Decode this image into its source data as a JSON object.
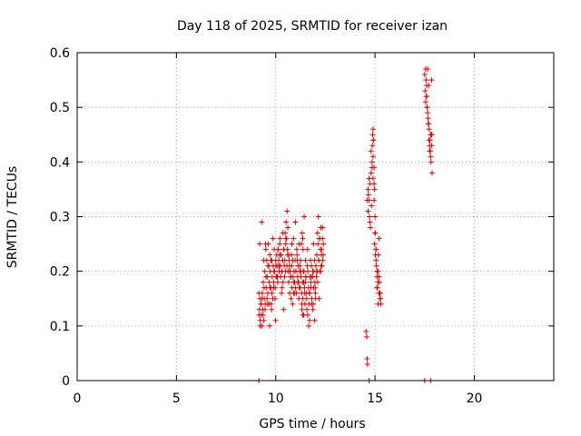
{
  "chart_data": {
    "type": "scatter",
    "title": "Day 118 of 2025, SRMTID for receiver izan",
    "xlabel": "GPS time / hours",
    "ylabel": "SRMTID / TECUs",
    "xlim": [
      0,
      24
    ],
    "ylim": [
      0,
      0.6
    ],
    "x_ticks": [
      0,
      5,
      10,
      15,
      20
    ],
    "y_ticks": [
      0,
      0.1,
      0.2,
      0.3,
      0.4,
      0.5,
      0.6
    ],
    "x_tick_labels": [
      "0",
      "5",
      "10",
      "15",
      "20"
    ],
    "y_tick_labels": [
      "0",
      "0.1",
      "0.2",
      "0.3",
      "0.4",
      "0.5",
      "0.6"
    ],
    "grid": true,
    "marker": "+",
    "color": "#e00000",
    "series": [
      {
        "x": [
          9.15,
          9.18,
          9.2,
          9.22,
          9.25,
          9.27,
          9.3,
          9.32,
          9.35,
          9.37,
          9.4,
          9.42,
          9.45,
          9.47,
          9.5,
          9.52,
          9.55,
          9.57,
          9.6,
          9.62,
          9.65,
          9.67,
          9.7,
          9.72,
          9.75,
          9.77,
          9.8,
          9.82,
          9.85,
          9.87,
          9.9,
          9.92,
          9.95,
          9.97,
          10.0,
          10.02,
          10.05,
          10.07,
          10.1,
          10.12,
          10.15,
          10.17,
          10.2,
          10.22,
          10.25,
          10.27,
          10.3,
          10.32,
          10.35,
          10.37,
          10.4,
          10.42,
          10.45,
          10.47,
          10.5,
          10.52,
          10.55,
          10.57,
          10.6,
          10.62,
          10.65,
          10.67,
          10.7,
          10.72,
          10.75,
          10.77,
          10.8,
          10.82,
          10.85,
          10.87,
          10.9,
          10.92,
          10.95,
          10.97,
          11.0,
          11.02,
          11.05,
          11.07,
          11.1,
          11.12,
          11.15,
          11.17,
          11.2,
          11.22,
          11.25,
          11.27,
          11.3,
          11.32,
          11.35,
          11.37,
          11.4,
          11.42,
          11.45,
          11.47,
          11.5,
          11.52,
          11.55,
          11.57,
          11.6,
          11.62,
          11.65,
          11.67,
          11.7,
          11.72,
          11.75,
          11.77,
          11.8,
          11.82,
          11.85,
          11.87,
          11.9,
          11.92,
          11.95,
          11.97,
          12.0,
          12.02,
          12.05,
          12.07,
          12.1,
          12.12,
          12.15,
          12.17,
          12.2,
          12.22,
          12.25,
          12.27,
          12.3,
          12.32,
          12.35,
          12.37,
          12.4,
          9.16,
          9.21,
          9.26,
          9.31,
          9.36,
          9.41,
          9.46,
          9.51,
          9.56,
          9.61,
          9.66,
          9.71,
          9.76,
          9.81,
          9.86,
          9.91,
          9.96,
          10.01,
          10.06,
          10.11,
          10.16,
          10.21,
          10.26,
          10.31,
          10.36,
          10.41,
          10.46,
          10.51,
          10.56,
          10.61,
          10.66,
          10.71,
          10.76,
          10.81,
          10.86,
          10.91,
          10.96,
          11.01,
          11.06,
          11.11,
          11.16,
          11.21,
          11.26,
          11.31,
          11.36,
          11.41,
          11.46,
          11.51,
          11.56,
          11.61,
          11.66,
          11.71,
          11.76,
          11.81,
          11.86,
          11.91,
          11.96,
          12.01,
          12.06,
          12.11,
          12.16,
          12.21,
          12.26,
          12.31,
          12.36,
          9.19,
          9.29,
          9.39,
          9.49,
          9.59,
          9.69,
          9.79,
          9.89,
          9.99,
          10.09,
          10.19,
          10.29,
          10.39,
          10.49,
          10.59,
          10.69,
          10.79,
          10.89,
          10.99,
          11.09,
          11.19,
          11.29,
          11.39,
          11.49,
          11.59,
          11.69,
          11.79,
          11.89,
          11.99,
          12.09,
          12.19,
          12.29,
          12.39,
          11.33,
          11.38,
          11.43,
          11.36,
          14.55,
          14.58,
          14.6,
          14.62,
          14.65,
          14.67,
          14.7,
          14.72,
          14.75,
          14.77,
          14.8,
          14.82,
          14.85,
          14.87,
          14.9,
          14.92,
          14.95,
          14.97,
          15.0,
          15.02,
          15.05,
          15.07,
          15.1,
          15.12,
          15.15,
          15.17,
          15.2,
          15.22,
          15.25,
          15.27,
          15.3,
          14.6,
          14.65,
          14.7,
          14.75,
          14.8,
          14.85,
          14.9,
          14.95,
          15.0,
          15.05,
          15.1,
          15.15,
          15.2,
          15.25,
          14.88,
          14.9,
          14.92,
          14.95,
          14.98,
          15.02,
          15.05,
          15.1,
          15.15,
          15.2,
          15.25,
          17.5,
          17.52,
          17.55,
          17.57,
          17.6,
          17.62,
          17.65,
          17.67,
          17.7,
          17.72,
          17.75,
          17.77,
          17.8,
          17.82,
          17.85,
          17.87,
          17.55,
          17.6,
          17.65,
          17.7,
          17.75,
          17.8,
          17.85,
          17.58,
          17.62,
          17.68,
          17.72,
          17.78,
          17.82,
          17.86
        ],
        "y": [
          0.16,
          0.13,
          0.15,
          0.11,
          0.14,
          0.12,
          0.1,
          0.16,
          0.13,
          0.18,
          0.11,
          0.15,
          0.2,
          0.14,
          0.24,
          0.17,
          0.22,
          0.19,
          0.16,
          0.25,
          0.21,
          0.18,
          0.23,
          0.2,
          0.17,
          0.14,
          0.22,
          0.19,
          0.15,
          0.21,
          0.18,
          0.24,
          0.2,
          0.17,
          0.22,
          0.19,
          0.23,
          0.21,
          0.18,
          0.24,
          0.22,
          0.2,
          0.25,
          0.21,
          0.19,
          0.23,
          0.2,
          0.17,
          0.22,
          0.18,
          0.24,
          0.21,
          0.19,
          0.27,
          0.25,
          0.29,
          0.26,
          0.31,
          0.23,
          0.2,
          0.18,
          0.22,
          0.16,
          0.2,
          0.19,
          0.15,
          0.21,
          0.17,
          0.14,
          0.19,
          0.16,
          0.2,
          0.18,
          0.22,
          0.17,
          0.2,
          0.16,
          0.23,
          0.19,
          0.21,
          0.18,
          0.25,
          0.2,
          0.17,
          0.22,
          0.19,
          0.16,
          0.13,
          0.18,
          0.15,
          0.12,
          0.2,
          0.17,
          0.14,
          0.22,
          0.19,
          0.16,
          0.13,
          0.24,
          0.2,
          0.17,
          0.14,
          0.11,
          0.19,
          0.22,
          0.17,
          0.21,
          0.15,
          0.19,
          0.13,
          0.25,
          0.2,
          0.22,
          0.18,
          0.16,
          0.21,
          0.19,
          0.23,
          0.27,
          0.25,
          0.3,
          0.22,
          0.26,
          0.2,
          0.24,
          0.28,
          0.23,
          0.21,
          0.26,
          0.22,
          0.25,
          0.12,
          0.1,
          0.14,
          0.15,
          0.12,
          0.17,
          0.13,
          0.19,
          0.15,
          0.21,
          0.14,
          0.17,
          0.22,
          0.16,
          0.26,
          0.2,
          0.15,
          0.21,
          0.19,
          0.24,
          0.21,
          0.26,
          0.23,
          0.2,
          0.27,
          0.24,
          0.22,
          0.26,
          0.21,
          0.28,
          0.23,
          0.2,
          0.19,
          0.25,
          0.22,
          0.18,
          0.16,
          0.2,
          0.24,
          0.18,
          0.15,
          0.21,
          0.2,
          0.14,
          0.12,
          0.18,
          0.16,
          0.19,
          0.15,
          0.12,
          0.1,
          0.16,
          0.18,
          0.14,
          0.2,
          0.17,
          0.11,
          0.15,
          0.2,
          0.18,
          0.22,
          0.26,
          0.2,
          0.24,
          0.28,
          0.25,
          0.29,
          0.22,
          0.25,
          0.14,
          0.1,
          0.13,
          0.17,
          0.11,
          0.19,
          0.23,
          0.16,
          0.13,
          0.2,
          0.24,
          0.21,
          0.23,
          0.26,
          0.29,
          0.22,
          0.17,
          0.25,
          0.2,
          0.18,
          0.21,
          0.16,
          0.19,
          0.14,
          0.17,
          0.2,
          0.15,
          0.21,
          0.23,
          0.27,
          0.24,
          0.3,
          0.26,
          0.09,
          0.08,
          0.04,
          0.03,
          0.31,
          0.34,
          0.33,
          0.3,
          0.36,
          0.28,
          0.38,
          0.32,
          0.4,
          0.43,
          0.46,
          0.44,
          0.39,
          0.35,
          0.3,
          0.27,
          0.24,
          0.21,
          0.19,
          0.17,
          0.2,
          0.23,
          0.26,
          0.18,
          0.16,
          0.15,
          0.14,
          0.33,
          0.35,
          0.37,
          0.29,
          0.42,
          0.39,
          0.37,
          0.33,
          0.27,
          0.24,
          0.2,
          0.18,
          0.16,
          0.15,
          0.45,
          0.41,
          0.44,
          0.36,
          0.25,
          0.23,
          0.22,
          0.17,
          0.14,
          0.19,
          0.16,
          0.56,
          0.53,
          0.51,
          0.55,
          0.52,
          0.5,
          0.57,
          0.48,
          0.54,
          0.46,
          0.42,
          0.44,
          0.41,
          0.45,
          0.43,
          0.38,
          0.57,
          0.54,
          0.49,
          0.47,
          0.43,
          0.45,
          0.55,
          0.52,
          0.5,
          0.47,
          0.44,
          0.42,
          0.4,
          0.45
        ]
      },
      {
        "x": [
          9.15,
          14.7,
          17.5,
          17.8
        ],
        "y": [
          0,
          0,
          0,
          0
        ]
      }
    ]
  }
}
